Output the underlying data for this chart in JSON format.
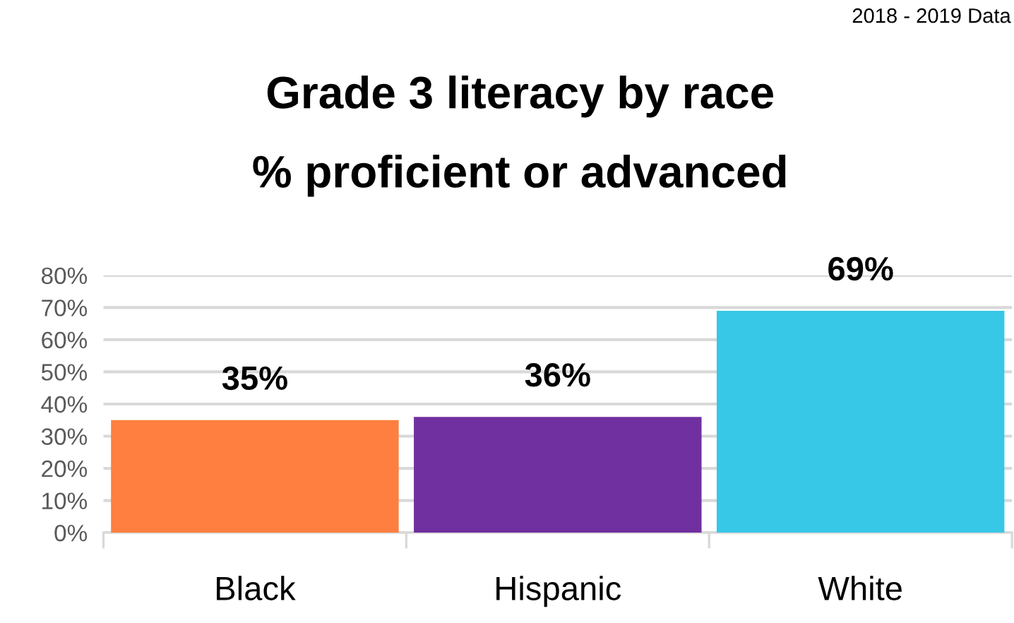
{
  "chart_data": {
    "type": "bar",
    "title": "Grade 3 literacy by race",
    "subtitle": "% proficient or advanced",
    "annotations": [
      "2018 - 2019 Data"
    ],
    "categories": [
      "Black",
      "Hispanic",
      "White"
    ],
    "values": [
      35,
      36,
      69
    ],
    "value_labels": [
      "35%",
      "36%",
      "69%"
    ],
    "colors": [
      "#fe7f3f",
      "#7030a0",
      "#37c8e7"
    ],
    "ylim": [
      0,
      80
    ],
    "yticks": [
      {
        "value": 0,
        "label": "0%"
      },
      {
        "value": 10,
        "label": "10%"
      },
      {
        "value": 20,
        "label": "20%"
      },
      {
        "value": 30,
        "label": "30%"
      },
      {
        "value": 40,
        "label": "40%"
      },
      {
        "value": 50,
        "label": "50%"
      },
      {
        "value": 60,
        "label": "60%"
      },
      {
        "value": 70,
        "label": "70%"
      },
      {
        "value": 80,
        "label": "80%"
      }
    ],
    "grid": "y",
    "legend": false
  }
}
